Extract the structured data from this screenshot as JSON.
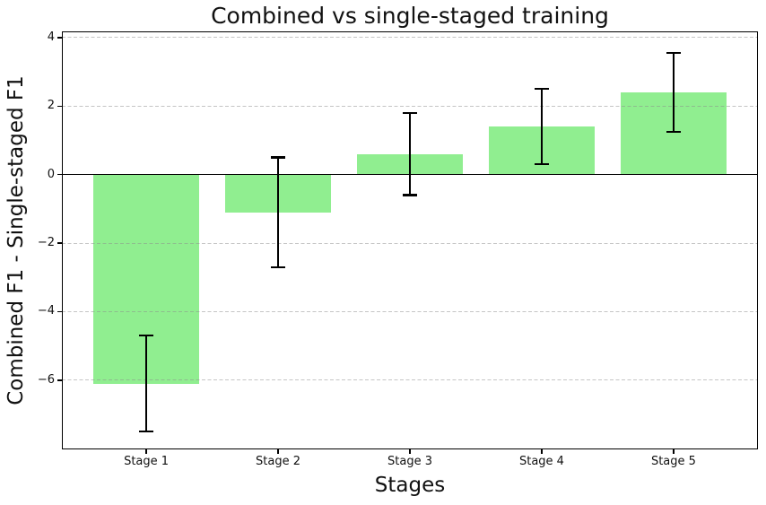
{
  "chart_data": {
    "type": "bar",
    "title": "Combined vs single-staged training",
    "xlabel": "Stages",
    "ylabel": "Combined F1 - Single-staged F1",
    "categories": [
      "Stage 1",
      "Stage 2",
      "Stage 3",
      "Stage 4",
      "Stage 5"
    ],
    "values": [
      -6.1,
      -1.1,
      0.6,
      1.4,
      2.4
    ],
    "errors": [
      1.4,
      1.6,
      1.2,
      1.1,
      1.15
    ],
    "yticks": [
      4,
      2,
      0,
      -2,
      -4,
      -6
    ],
    "ylim": [
      -8.02,
      4.18
    ],
    "bar_color": "#90ee90",
    "error_color": "#000000",
    "grid": true,
    "grid_style": "dashed",
    "grid_above_bars": true,
    "zero_line": true,
    "legend": "none",
    "bar_width_frac": 0.8,
    "x_margin": 0.64
  }
}
